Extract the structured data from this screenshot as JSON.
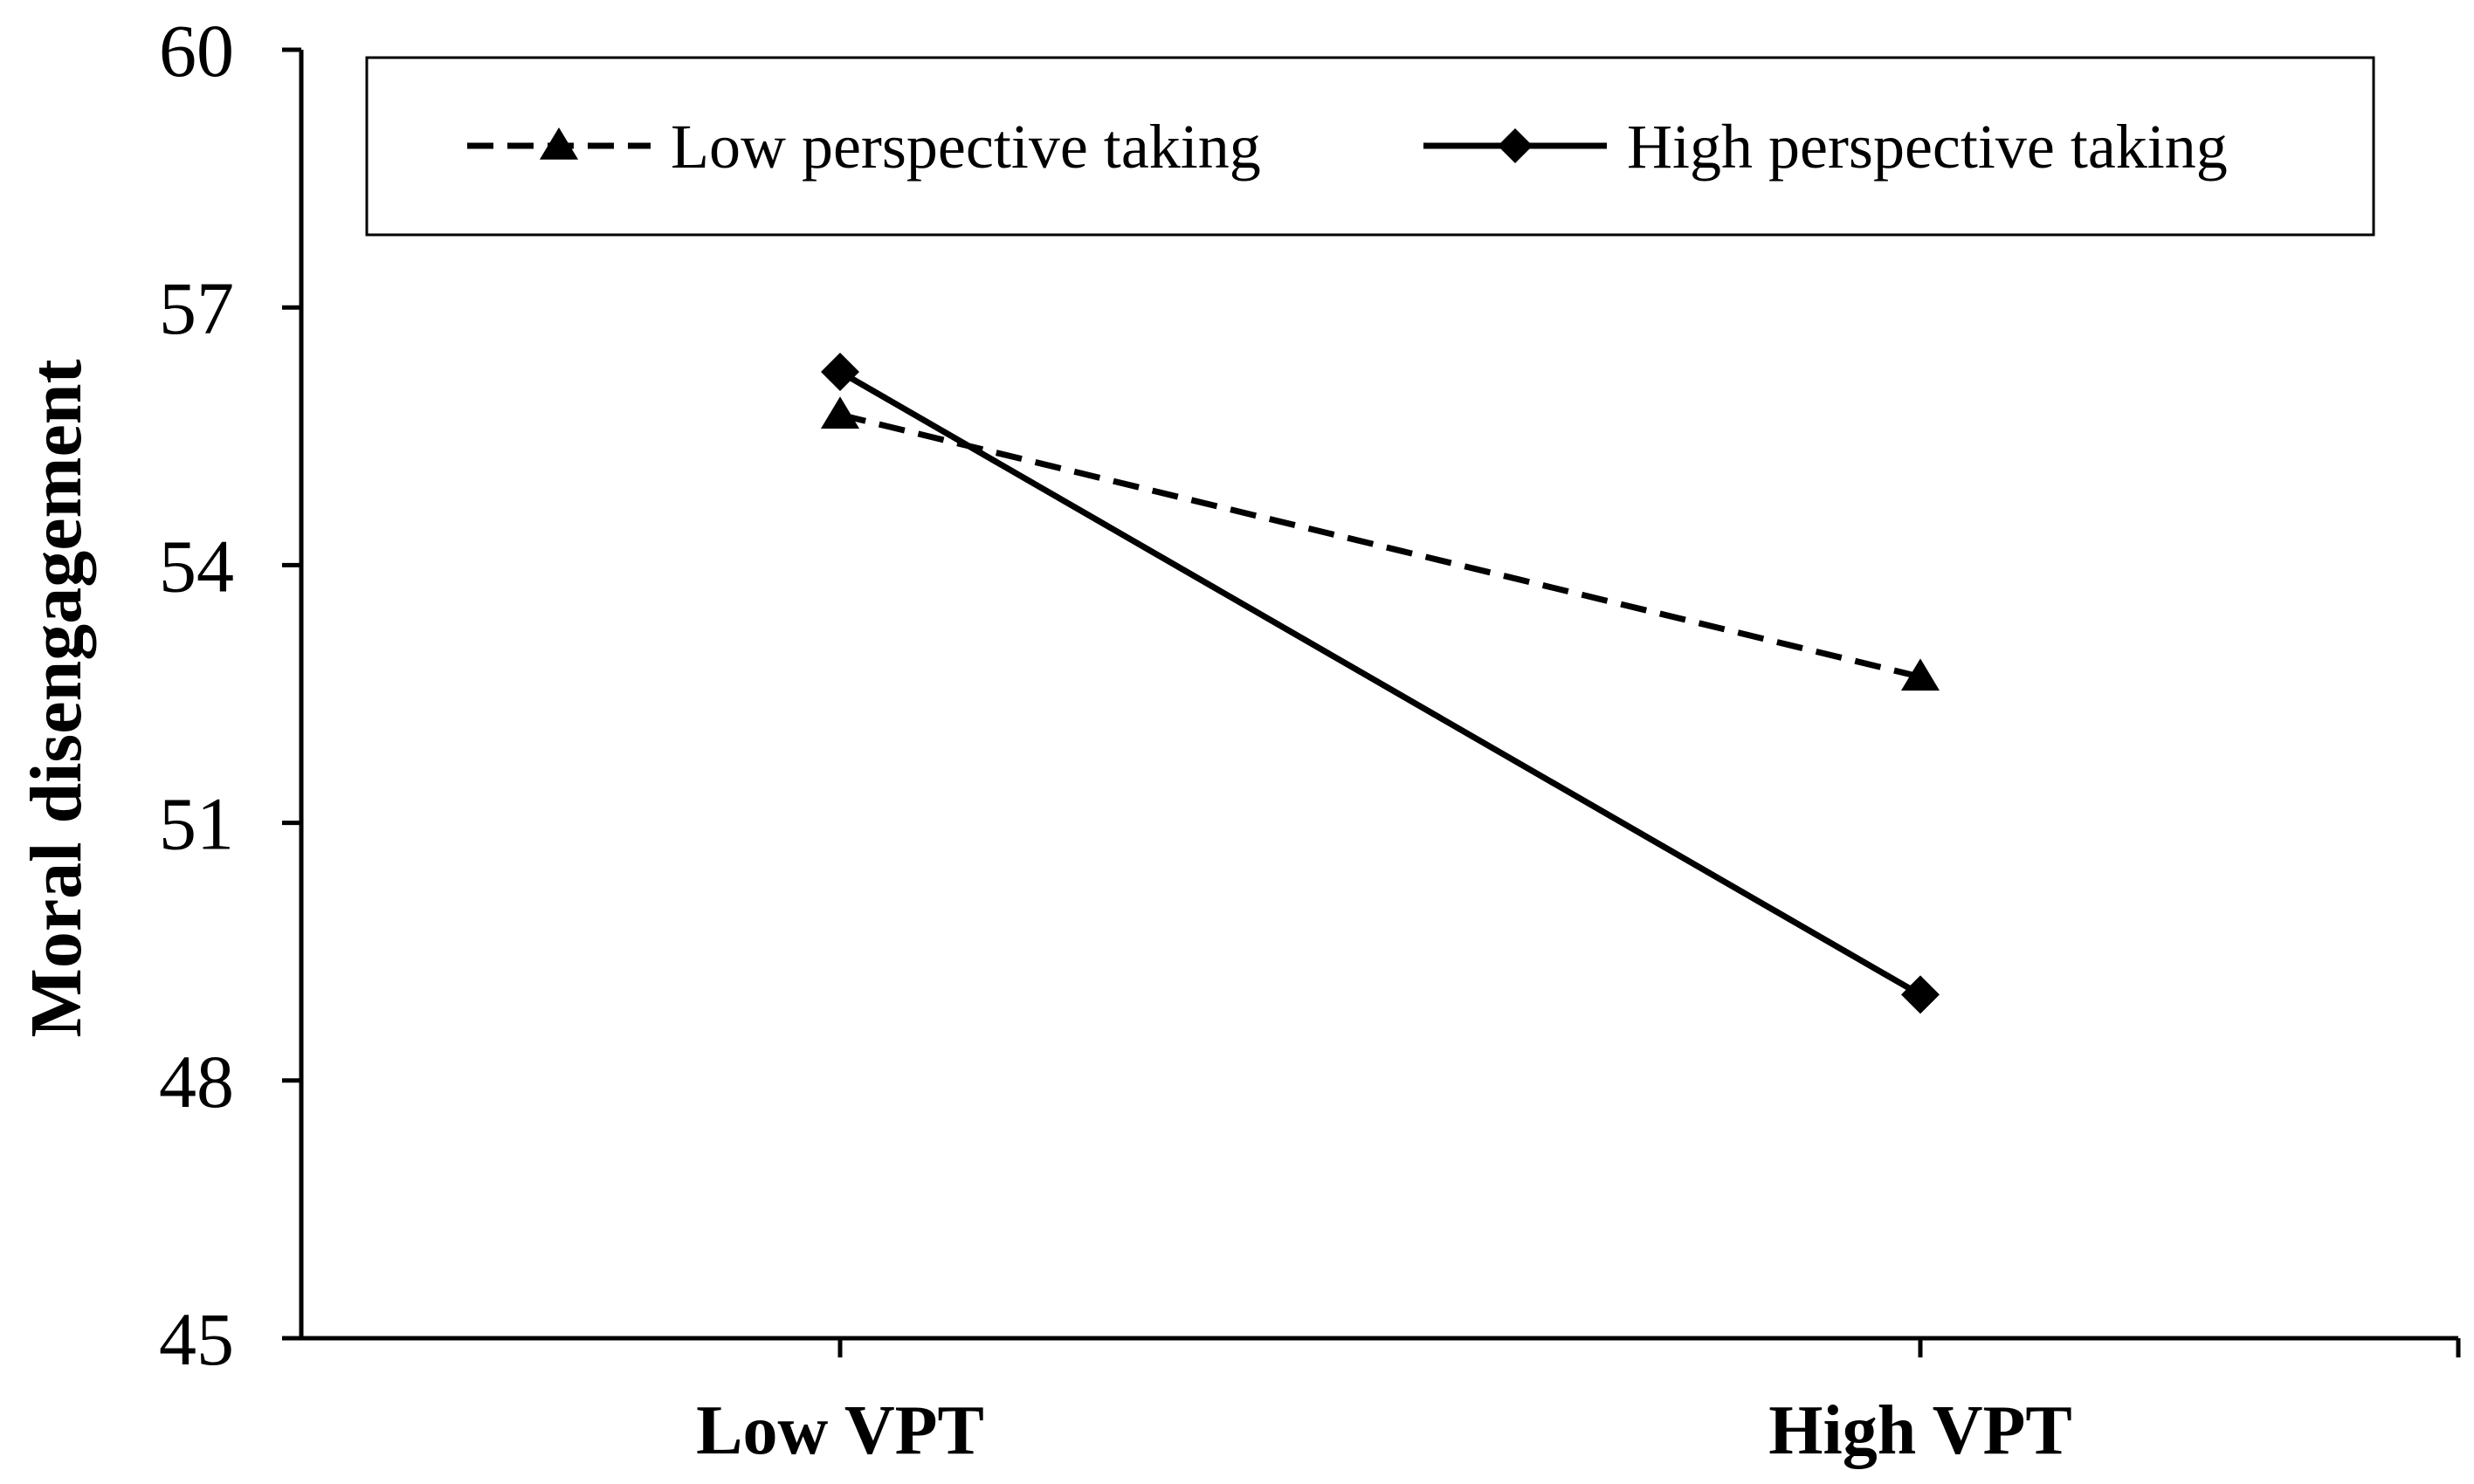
{
  "chart_data": {
    "type": "line",
    "title": "",
    "xlabel": "",
    "ylabel": "Moral disengagement",
    "categories": [
      "Low VPT",
      "High VPT"
    ],
    "ylim": [
      45,
      60
    ],
    "yticks": [
      45,
      48,
      51,
      54,
      57,
      60
    ],
    "grid": false,
    "legend_position": "top",
    "series": [
      {
        "name": "Low perspective taking",
        "values": [
          55.75,
          52.7
        ],
        "line_style": "dashed",
        "marker": "triangle",
        "color": "#000000"
      },
      {
        "name": "High perspective taking",
        "values": [
          56.25,
          49.0
        ],
        "line_style": "solid",
        "marker": "diamond",
        "color": "#000000"
      }
    ]
  }
}
